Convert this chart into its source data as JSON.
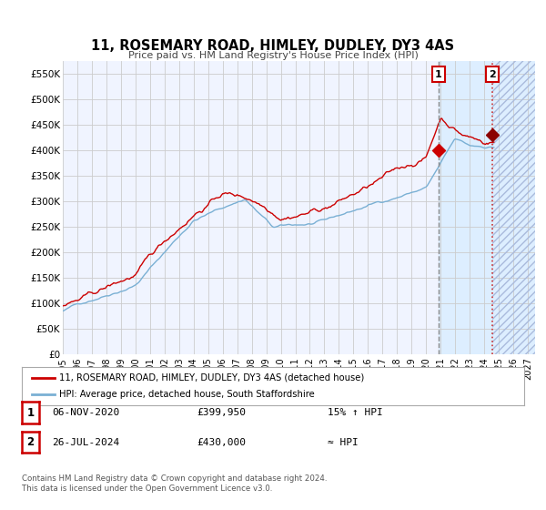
{
  "title": "11, ROSEMARY ROAD, HIMLEY, DUDLEY, DY3 4AS",
  "subtitle": "Price paid vs. HM Land Registry's House Price Index (HPI)",
  "ylim": [
    0,
    575000
  ],
  "xlim_start": 1995.0,
  "xlim_end": 2027.5,
  "yticks": [
    0,
    50000,
    100000,
    150000,
    200000,
    250000,
    300000,
    350000,
    400000,
    450000,
    500000,
    550000
  ],
  "ytick_labels": [
    "£0",
    "£50K",
    "£100K",
    "£150K",
    "£200K",
    "£250K",
    "£300K",
    "£350K",
    "£400K",
    "£450K",
    "£500K",
    "£550K"
  ],
  "xticks": [
    1995,
    1996,
    1997,
    1998,
    1999,
    2000,
    2001,
    2002,
    2003,
    2004,
    2005,
    2006,
    2007,
    2008,
    2009,
    2010,
    2011,
    2012,
    2013,
    2014,
    2015,
    2016,
    2017,
    2018,
    2019,
    2020,
    2021,
    2022,
    2023,
    2024,
    2025,
    2026,
    2027
  ],
  "bg_color": "#f0f4ff",
  "grid_color": "#cccccc",
  "red_line_color": "#cc0000",
  "blue_line_color": "#7ab0d4",
  "vline1_color": "#888888",
  "vline2_color": "#cc3333",
  "highlight_color": "#ddeeff",
  "event1_x": 2020.85,
  "event1_y": 399950,
  "event2_x": 2024.57,
  "event2_y": 430000,
  "legend_label_red": "11, ROSEMARY ROAD, HIMLEY, DUDLEY, DY3 4AS (detached house)",
  "legend_label_blue": "HPI: Average price, detached house, South Staffordshire",
  "table_row1": [
    "1",
    "06-NOV-2020",
    "£399,950",
    "15% ↑ HPI"
  ],
  "table_row2": [
    "2",
    "26-JUL-2024",
    "£430,000",
    "≈ HPI"
  ],
  "footer_line1": "Contains HM Land Registry data © Crown copyright and database right 2024.",
  "footer_line2": "This data is licensed under the Open Government Licence v3.0."
}
